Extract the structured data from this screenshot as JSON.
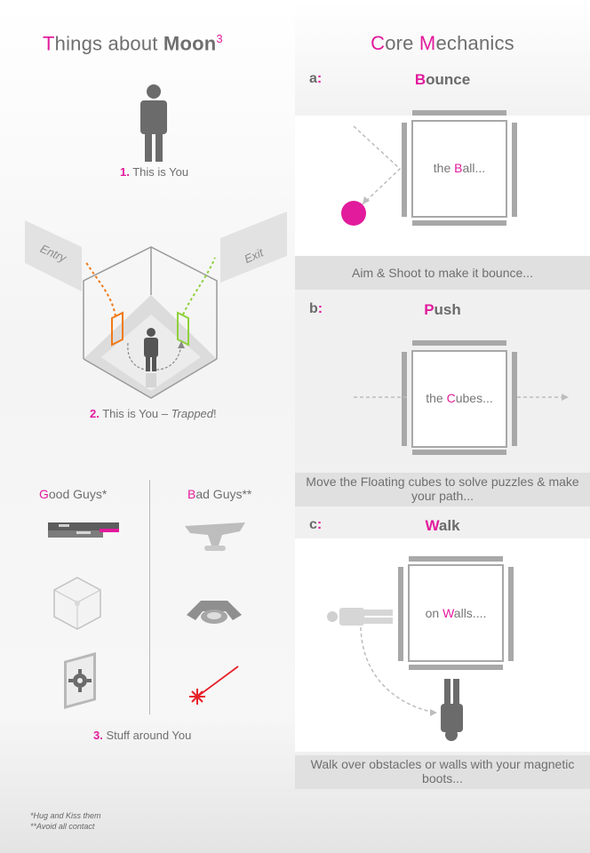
{
  "left": {
    "title_t": "T",
    "title_rest": "hings about ",
    "title_bold": "Moon",
    "title_sup": "3",
    "cap1_num": "1.",
    "cap1_text": " This is You",
    "entry_label": "Entry",
    "exit_label": "Exit",
    "cap2_num": "2.",
    "cap2_text": " This is You – ",
    "cap2_italic": "Trapped",
    "cap2_end": "!",
    "good_g": "G",
    "good_rest": "ood Guys*",
    "bad_b": "B",
    "bad_rest": "ad Guys**",
    "cap3_num": "3.",
    "cap3_text": "  Stuff around You",
    "foot1": "*Hug and Kiss them",
    "foot2": "**Avoid all contact"
  },
  "right": {
    "title_c": "C",
    "title_ore": "ore ",
    "title_m": "M",
    "title_rest": "echanics",
    "a_letter": "a",
    "a_colon": ":",
    "a_first": "B",
    "a_rest": "ounce",
    "a_label_pre": "the ",
    "a_label_hl": "B",
    "a_label_post": "all...",
    "a_caption": "Aim & Shoot to make it bounce...",
    "b_letter": "b",
    "b_colon": ":",
    "b_first": "P",
    "b_rest": "ush",
    "b_label_pre": "the ",
    "b_label_hl": "C",
    "b_label_post": "ubes...",
    "b_caption": "Move the Floating cubes to solve puzzles & make your path...",
    "c_letter": "c",
    "c_colon": ":",
    "c_first": "W",
    "c_rest": "alk",
    "c_label_pre": "on ",
    "c_label_hl": "W",
    "c_label_post": "alls....",
    "c_caption": "Walk over obstacles or walls with your magnetic boots..."
  },
  "colors": {
    "accent": "#e21b9c",
    "entry_path": "#f07a1a",
    "exit_path": "#8fd13b",
    "laser": "#e8202a"
  }
}
